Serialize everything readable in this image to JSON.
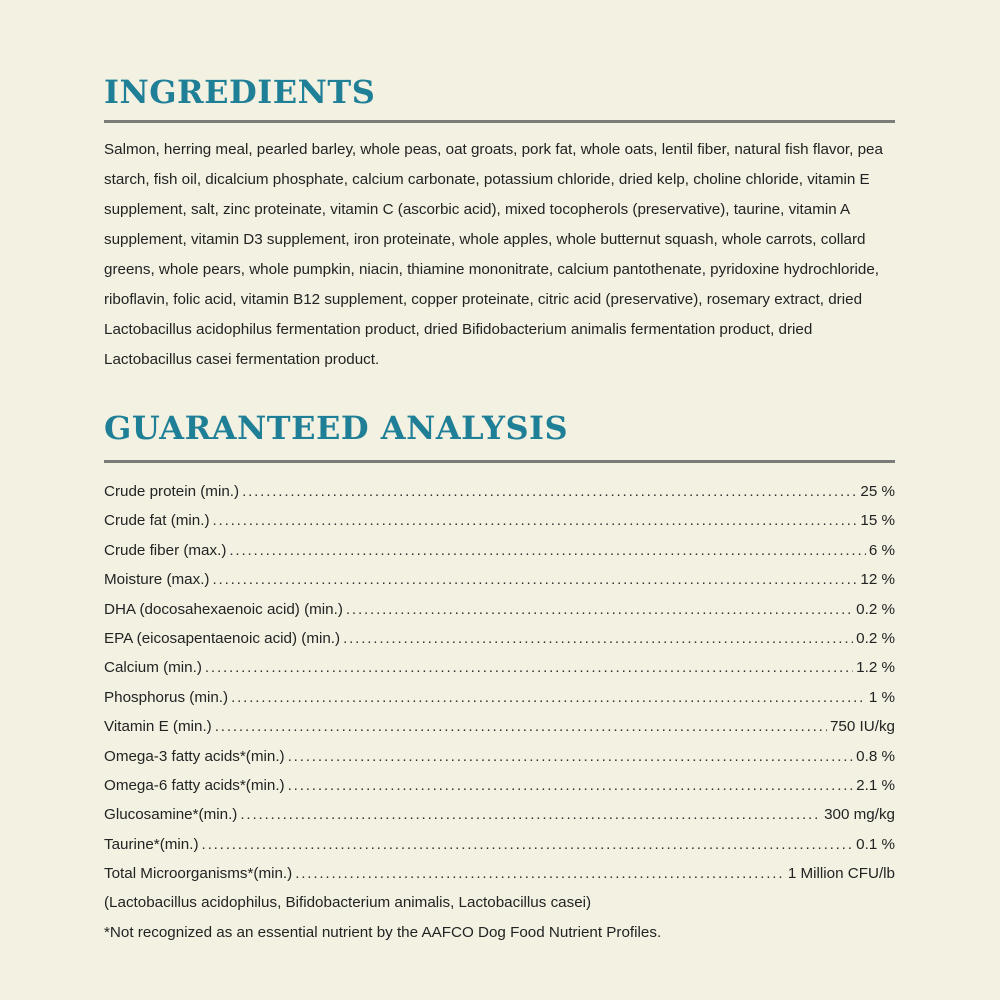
{
  "ingredients": {
    "heading": "INGREDIENTS",
    "text": "Salmon, herring meal, pearled barley, whole peas, oat groats, pork fat, whole oats, lentil fiber, natural fish flavor, pea starch, fish oil, dicalcium phosphate, calcium carbonate, potassium chloride, dried kelp, choline chloride, vitamin E supplement, salt, zinc proteinate, vitamin C (ascorbic acid), mixed tocopherols (preservative), taurine, vitamin A supplement, vitamin D3 supplement, iron proteinate, whole apples, whole butternut squash, whole carrots, collard greens, whole pears, whole pumpkin, niacin, thiamine mononitrate, calcium pantothenate, pyridoxine hydrochloride, riboflavin, folic acid, vitamin B12 supplement, copper proteinate, citric acid (preservative), rosemary extract, dried Lactobacillus acidophilus fermentation product, dried Bifidobacterium animalis fermentation product, dried Lactobacillus casei fermentation product."
  },
  "analysis": {
    "heading": "GUARANTEED ANALYSIS",
    "rows": [
      {
        "label": "Crude protein (min.)",
        "value": "25 %"
      },
      {
        "label": "Crude fat (min.)",
        "value": "15 %"
      },
      {
        "label": "Crude fiber (max.)",
        "value": "6 %"
      },
      {
        "label": "Moisture (max.)",
        "value": "12 %"
      },
      {
        "label": "DHA (docosahexaenoic acid) (min.)",
        "value": "0.2 %"
      },
      {
        "label": "EPA (eicosapentaenoic acid) (min.)",
        "value": "0.2 %"
      },
      {
        "label": "Calcium (min.)",
        "value": "1.2 %"
      },
      {
        "label": "Phosphorus (min.)",
        "value": "1 %"
      },
      {
        "label": "Vitamin E (min.)",
        "value": "750 IU/kg"
      },
      {
        "label": "Omega-3 fatty acids*(min.)",
        "value": "0.8 %"
      },
      {
        "label": "Omega-6 fatty acids*(min.)",
        "value": "2.1 %"
      },
      {
        "label": "Glucosamine*(min.)",
        "value": "300 mg/kg"
      },
      {
        "label": "Taurine*(min.)",
        "value": "0.1 %"
      },
      {
        "label": "Total Microorganisms*(min.)",
        "value": "1 Million CFU/lb"
      }
    ],
    "microorganisms_note": "(Lactobacillus acidophilus, Bifidobacterium animalis, Lactobacillus casei)",
    "footnote": "*Not recognized as an essential nutrient by the AAFCO Dog Food Nutrient Profiles."
  },
  "colors": {
    "background": "#f3f1e2",
    "heading": "#1f7f96",
    "rule": "#7b7b78",
    "text": "#232323"
  }
}
